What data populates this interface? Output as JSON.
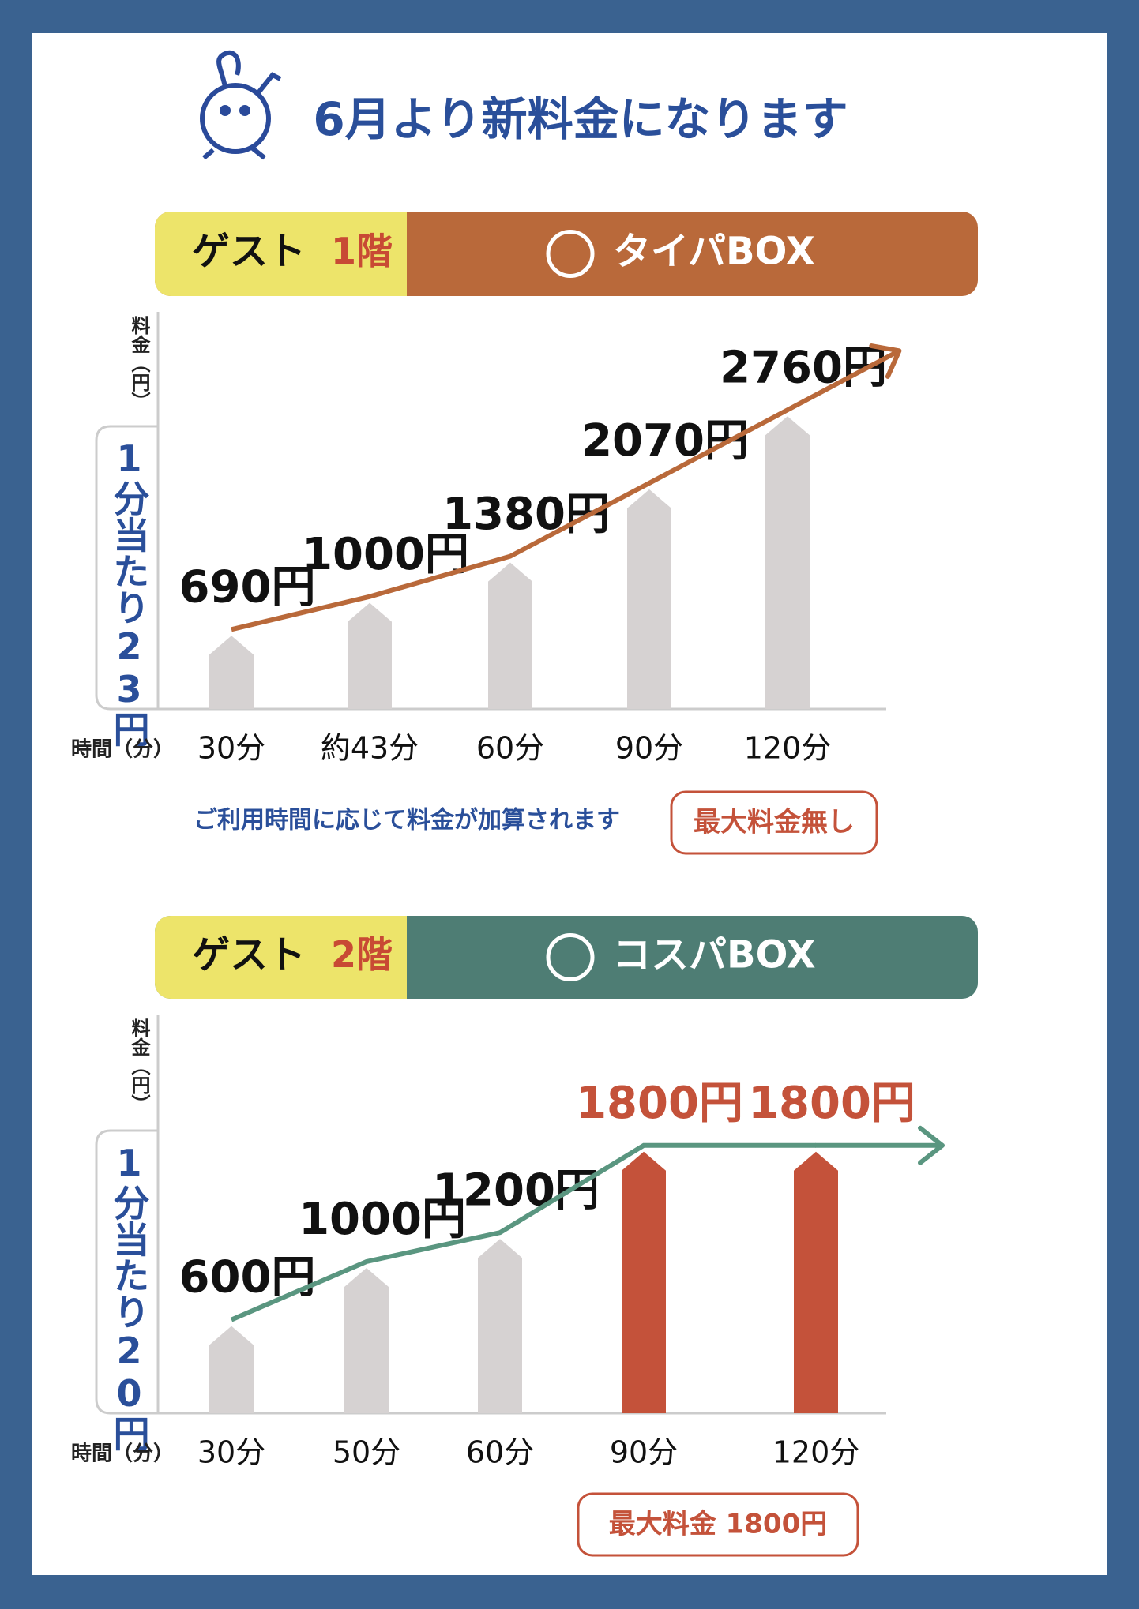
{
  "header": {
    "title": "6月より新料金になります"
  },
  "chart_data": [
    {
      "type": "bar",
      "banner": {
        "guest": "ゲスト",
        "floor": "1階",
        "name": "タイパBOX"
      },
      "banner_color": "#b9693a",
      "y_label": "料金（円）",
      "rate_label": "1分当たり23円",
      "x_label": "時間（分）",
      "categories": [
        "30分",
        "約43分",
        "60分",
        "90分",
        "120分"
      ],
      "values": [
        690,
        1000,
        1380,
        2070,
        2760
      ],
      "value_labels": [
        "690円",
        "1000円",
        "1380円",
        "2070円",
        "2760円"
      ],
      "colors": [
        "#d6d2d2",
        "#d6d2d2",
        "#d6d2d2",
        "#d6d2d2",
        "#d6d2d2"
      ],
      "line_color": "#b9693a",
      "ylim": [
        0,
        3000
      ],
      "note": "ご利用時間に応じて料金が加算されます",
      "badge": "最大料金無し"
    },
    {
      "type": "bar",
      "banner": {
        "guest": "ゲスト",
        "floor": "2階",
        "name": "コスパBOX"
      },
      "banner_color": "#4e7d74",
      "y_label": "料金（円）",
      "rate_label": "1分当たり20円",
      "x_label": "時間（分）",
      "categories": [
        "30分",
        "50分",
        "60分",
        "90分",
        "120分"
      ],
      "values": [
        600,
        1000,
        1200,
        1800,
        1800
      ],
      "value_labels": [
        "600円",
        "1000円",
        "1200円",
        "1800円",
        "1800円"
      ],
      "colors": [
        "#d6d2d2",
        "#d6d2d2",
        "#d6d2d2",
        "#c4523a",
        "#c4523a"
      ],
      "line_color": "#5a9680",
      "ylim": [
        0,
        2000
      ],
      "badge": "最大料金 1800円"
    }
  ]
}
